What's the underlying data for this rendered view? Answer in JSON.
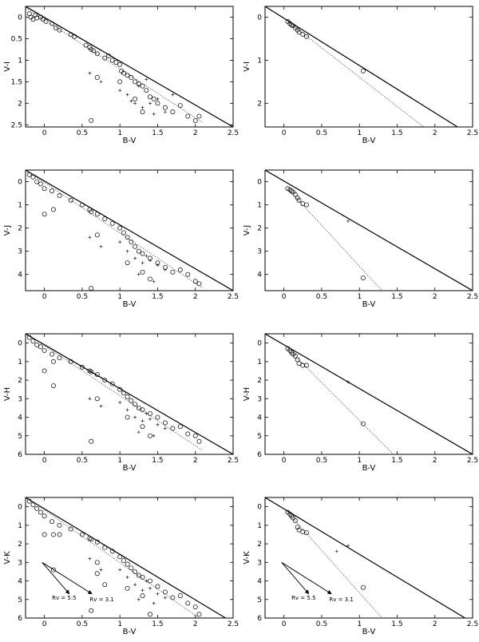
{
  "chart_data": [
    {
      "type": "scatter",
      "xlabel": "B-V",
      "ylabel": "V-I",
      "xlim": [
        -0.25,
        2.5
      ],
      "ylim": [
        2.55,
        -0.25
      ],
      "xticks": [
        0,
        0.5,
        1,
        1.5,
        2,
        2.5
      ],
      "yticks": [
        0,
        0.5,
        1,
        1.5,
        2,
        2.5
      ],
      "solid_line": [
        [
          -0.25,
          -0.25
        ],
        [
          2.5,
          2.55
        ]
      ],
      "dotted_line": [
        [
          -0.25,
          -0.22
        ],
        [
          2.1,
          2.45
        ]
      ],
      "circles": [
        [
          -0.2,
          -0.08
        ],
        [
          -0.18,
          0.0
        ],
        [
          -0.15,
          0.05
        ],
        [
          -0.12,
          -0.05
        ],
        [
          -0.1,
          0.02
        ],
        [
          -0.05,
          0.0
        ],
        [
          -0.02,
          0.05
        ],
        [
          0.02,
          0.1
        ],
        [
          0.1,
          0.15
        ],
        [
          0.15,
          0.25
        ],
        [
          0.2,
          0.3
        ],
        [
          0.35,
          0.4
        ],
        [
          0.4,
          0.45
        ],
        [
          0.55,
          0.65
        ],
        [
          0.6,
          0.7
        ],
        [
          0.62,
          0.75
        ],
        [
          0.65,
          0.78
        ],
        [
          0.7,
          0.85
        ],
        [
          0.8,
          0.95
        ],
        [
          0.85,
          0.9
        ],
        [
          0.9,
          1.0
        ],
        [
          0.95,
          1.05
        ],
        [
          1.0,
          1.1
        ],
        [
          1.02,
          1.25
        ],
        [
          1.05,
          1.3
        ],
        [
          1.1,
          1.35
        ],
        [
          1.15,
          1.4
        ],
        [
          1.2,
          1.5
        ],
        [
          1.25,
          1.55
        ],
        [
          1.3,
          1.6
        ],
        [
          1.35,
          1.7
        ],
        [
          1.4,
          1.85
        ],
        [
          1.45,
          1.9
        ],
        [
          1.5,
          2.0
        ],
        [
          1.6,
          2.1
        ],
        [
          1.7,
          2.2
        ],
        [
          1.8,
          2.05
        ],
        [
          1.9,
          2.3
        ],
        [
          2.0,
          2.4
        ],
        [
          2.05,
          2.3
        ],
        [
          0.62,
          2.4
        ],
        [
          0.7,
          1.4
        ],
        [
          1.0,
          1.5
        ],
        [
          1.2,
          1.9
        ],
        [
          1.3,
          2.2
        ]
      ],
      "pluses": [
        [
          0.6,
          1.3
        ],
        [
          0.75,
          1.5
        ],
        [
          1.0,
          1.7
        ],
        [
          1.1,
          1.8
        ],
        [
          1.2,
          2.0
        ],
        [
          1.3,
          2.1
        ],
        [
          1.4,
          2.0
        ],
        [
          1.5,
          1.9
        ],
        [
          1.6,
          2.2
        ],
        [
          1.7,
          1.8
        ],
        [
          1.25,
          1.6
        ],
        [
          1.35,
          1.45
        ],
        [
          1.45,
          2.25
        ],
        [
          1.15,
          1.95
        ]
      ]
    },
    {
      "type": "scatter",
      "xlabel": "B-V",
      "ylabel": "V-I",
      "xlim": [
        -0.25,
        2.5
      ],
      "ylim": [
        2.55,
        -0.25
      ],
      "xticks": [
        0,
        0.5,
        1,
        1.5,
        2,
        2.5
      ],
      "yticks": [
        0,
        1,
        2
      ],
      "solid_line": [
        [
          -0.25,
          -0.25
        ],
        [
          2.3,
          2.55
        ]
      ],
      "dotted_line": [
        [
          0.05,
          0.1
        ],
        [
          1.85,
          2.55
        ]
      ],
      "circles": [
        [
          0.05,
          0.1
        ],
        [
          0.08,
          0.15
        ],
        [
          0.1,
          0.18
        ],
        [
          0.12,
          0.2
        ],
        [
          0.15,
          0.25
        ],
        [
          0.18,
          0.3
        ],
        [
          0.2,
          0.35
        ],
        [
          0.25,
          0.4
        ],
        [
          0.3,
          0.45
        ],
        [
          1.05,
          1.25
        ]
      ],
      "pluses": []
    },
    {
      "type": "scatter",
      "xlabel": "B-V",
      "ylabel": "V-J",
      "xlim": [
        -0.25,
        2.5
      ],
      "ylim": [
        4.7,
        -0.5
      ],
      "xticks": [
        0,
        0.5,
        1,
        1.5,
        2,
        2.5
      ],
      "yticks": [
        0,
        1,
        2,
        3,
        4
      ],
      "solid_line": [
        [
          -0.25,
          -0.5
        ],
        [
          2.5,
          4.7
        ]
      ],
      "dotted_line": [
        [
          -0.2,
          -0.4
        ],
        [
          2.1,
          4.6
        ]
      ],
      "circles": [
        [
          -0.2,
          -0.3
        ],
        [
          -0.15,
          -0.2
        ],
        [
          -0.1,
          0.0
        ],
        [
          -0.05,
          0.1
        ],
        [
          0.0,
          0.3
        ],
        [
          0.1,
          0.4
        ],
        [
          0.2,
          0.6
        ],
        [
          0.35,
          0.8
        ],
        [
          0.5,
          1.0
        ],
        [
          0.6,
          1.2
        ],
        [
          0.62,
          1.3
        ],
        [
          0.7,
          1.4
        ],
        [
          0.8,
          1.6
        ],
        [
          0.9,
          1.8
        ],
        [
          1.0,
          2.0
        ],
        [
          1.05,
          2.2
        ],
        [
          1.1,
          2.4
        ],
        [
          1.15,
          2.6
        ],
        [
          1.2,
          2.8
        ],
        [
          1.25,
          3.0
        ],
        [
          1.3,
          3.1
        ],
        [
          1.4,
          3.3
        ],
        [
          1.5,
          3.5
        ],
        [
          1.6,
          3.7
        ],
        [
          1.7,
          3.9
        ],
        [
          1.8,
          3.8
        ],
        [
          1.9,
          4.0
        ],
        [
          2.0,
          4.3
        ],
        [
          2.05,
          4.4
        ],
        [
          0.0,
          1.4
        ],
        [
          0.12,
          1.2
        ],
        [
          0.7,
          2.3
        ],
        [
          0.62,
          4.6
        ],
        [
          1.1,
          3.5
        ],
        [
          1.3,
          3.9
        ],
        [
          1.4,
          4.2
        ]
      ],
      "pluses": [
        [
          0.6,
          2.4
        ],
        [
          0.75,
          2.8
        ],
        [
          1.0,
          2.6
        ],
        [
          1.1,
          3.0
        ],
        [
          1.2,
          3.3
        ],
        [
          1.3,
          3.5
        ],
        [
          1.4,
          3.4
        ],
        [
          1.5,
          3.6
        ],
        [
          1.6,
          3.8
        ],
        [
          1.25,
          4.0
        ],
        [
          1.35,
          3.2
        ],
        [
          1.45,
          4.3
        ]
      ]
    },
    {
      "type": "scatter",
      "xlabel": "B-V",
      "ylabel": "V-J",
      "xlim": [
        -0.25,
        2.5
      ],
      "ylim": [
        4.7,
        -0.5
      ],
      "xticks": [
        0,
        0.5,
        1,
        1.5,
        2,
        2.5
      ],
      "yticks": [
        0,
        1,
        2,
        3,
        4
      ],
      "solid_line": [
        [
          -0.25,
          -0.5
        ],
        [
          2.5,
          4.7
        ]
      ],
      "dotted_line": [
        [
          0.05,
          0.3
        ],
        [
          1.3,
          4.7
        ]
      ],
      "circles": [
        [
          0.05,
          0.3
        ],
        [
          0.08,
          0.35
        ],
        [
          0.1,
          0.4
        ],
        [
          0.12,
          0.45
        ],
        [
          0.15,
          0.55
        ],
        [
          0.18,
          0.7
        ],
        [
          0.2,
          0.8
        ],
        [
          0.25,
          0.95
        ],
        [
          0.3,
          1.0
        ],
        [
          1.05,
          4.15
        ]
      ],
      "pluses": [
        [
          0.85,
          1.7
        ]
      ]
    },
    {
      "type": "scatter",
      "xlabel": "B-V",
      "ylabel": "V-H",
      "xlim": [
        -0.25,
        2.5
      ],
      "ylim": [
        6.0,
        -0.5
      ],
      "xticks": [
        0,
        0.5,
        1,
        1.5,
        2,
        2.5
      ],
      "yticks": [
        0,
        1,
        2,
        3,
        4,
        5,
        6
      ],
      "solid_line": [
        [
          -0.25,
          -0.5
        ],
        [
          2.5,
          6.0
        ]
      ],
      "dotted_line": [
        [
          -0.2,
          -0.4
        ],
        [
          2.1,
          5.8
        ]
      ],
      "circles": [
        [
          -0.2,
          -0.3
        ],
        [
          -0.15,
          -0.1
        ],
        [
          -0.1,
          0.1
        ],
        [
          -0.05,
          0.2
        ],
        [
          0.0,
          0.4
        ],
        [
          0.1,
          0.6
        ],
        [
          0.2,
          0.8
        ],
        [
          0.35,
          1.0
        ],
        [
          0.5,
          1.3
        ],
        [
          0.6,
          1.5
        ],
        [
          0.62,
          1.55
        ],
        [
          0.7,
          1.7
        ],
        [
          0.8,
          2.0
        ],
        [
          0.9,
          2.2
        ],
        [
          1.0,
          2.5
        ],
        [
          1.05,
          2.7
        ],
        [
          1.1,
          2.9
        ],
        [
          1.15,
          3.1
        ],
        [
          1.2,
          3.3
        ],
        [
          1.25,
          3.5
        ],
        [
          1.3,
          3.6
        ],
        [
          1.4,
          3.8
        ],
        [
          1.5,
          4.0
        ],
        [
          1.6,
          4.3
        ],
        [
          1.7,
          4.6
        ],
        [
          1.8,
          4.5
        ],
        [
          1.9,
          4.9
        ],
        [
          2.0,
          5.0
        ],
        [
          2.05,
          5.3
        ],
        [
          0.0,
          1.5
        ],
        [
          0.12,
          1.0
        ],
        [
          0.12,
          2.3
        ],
        [
          0.7,
          3.0
        ],
        [
          0.62,
          5.3
        ],
        [
          1.1,
          4.0
        ],
        [
          1.3,
          4.5
        ],
        [
          1.4,
          5.0
        ]
      ],
      "pluses": [
        [
          0.6,
          3.0
        ],
        [
          0.75,
          3.4
        ],
        [
          1.0,
          3.2
        ],
        [
          1.1,
          3.6
        ],
        [
          1.2,
          4.0
        ],
        [
          1.3,
          4.2
        ],
        [
          1.4,
          4.1
        ],
        [
          1.5,
          4.4
        ],
        [
          1.6,
          4.6
        ],
        [
          1.25,
          4.8
        ],
        [
          1.35,
          3.8
        ],
        [
          1.45,
          5.0
        ]
      ]
    },
    {
      "type": "scatter",
      "xlabel": "B-V",
      "ylabel": "V-H",
      "xlim": [
        -0.25,
        2.5
      ],
      "ylim": [
        6.0,
        -0.5
      ],
      "xticks": [
        0,
        0.5,
        1,
        1.5,
        2,
        2.5
      ],
      "yticks": [
        0,
        1,
        2,
        3,
        4,
        5,
        6
      ],
      "solid_line": [
        [
          -0.25,
          -0.5
        ],
        [
          2.5,
          6.0
        ]
      ],
      "dotted_line": [
        [
          0.05,
          0.3
        ],
        [
          1.45,
          6.0
        ]
      ],
      "circles": [
        [
          0.05,
          0.3
        ],
        [
          0.08,
          0.4
        ],
        [
          0.1,
          0.5
        ],
        [
          0.12,
          0.6
        ],
        [
          0.15,
          0.7
        ],
        [
          0.18,
          0.9
        ],
        [
          0.2,
          1.1
        ],
        [
          0.25,
          1.2
        ],
        [
          0.3,
          1.2
        ],
        [
          1.05,
          4.35
        ]
      ],
      "pluses": [
        [
          0.85,
          2.1
        ]
      ]
    },
    {
      "type": "scatter",
      "xlabel": "B-V",
      "ylabel": "V-K",
      "xlim": [
        -0.25,
        2.5
      ],
      "ylim": [
        6.0,
        -0.5
      ],
      "xticks": [
        0,
        0.5,
        1,
        1.5,
        2,
        2.5
      ],
      "yticks": [
        0,
        1,
        2,
        3,
        4,
        5,
        6
      ],
      "solid_line": [
        [
          -0.25,
          -0.5
        ],
        [
          2.4,
          6.0
        ]
      ],
      "dotted_line": [
        [
          -0.2,
          -0.4
        ],
        [
          2.05,
          6.0
        ]
      ],
      "circles": [
        [
          -0.2,
          -0.3
        ],
        [
          -0.15,
          -0.1
        ],
        [
          -0.1,
          0.1
        ],
        [
          -0.05,
          0.3
        ],
        [
          0.0,
          0.5
        ],
        [
          0.1,
          0.8
        ],
        [
          0.2,
          1.0
        ],
        [
          0.35,
          1.2
        ],
        [
          0.5,
          1.5
        ],
        [
          0.6,
          1.7
        ],
        [
          0.62,
          1.75
        ],
        [
          0.7,
          1.9
        ],
        [
          0.8,
          2.2
        ],
        [
          0.9,
          2.4
        ],
        [
          1.0,
          2.7
        ],
        [
          1.05,
          2.9
        ],
        [
          1.1,
          3.1
        ],
        [
          1.15,
          3.3
        ],
        [
          1.2,
          3.5
        ],
        [
          1.25,
          3.7
        ],
        [
          1.3,
          3.8
        ],
        [
          1.4,
          4.0
        ],
        [
          1.5,
          4.3
        ],
        [
          1.6,
          4.6
        ],
        [
          1.7,
          4.9
        ],
        [
          1.8,
          4.8
        ],
        [
          1.9,
          5.2
        ],
        [
          2.0,
          5.4
        ],
        [
          2.05,
          5.8
        ],
        [
          0.0,
          1.5
        ],
        [
          0.12,
          1.5
        ],
        [
          0.2,
          1.5
        ],
        [
          0.7,
          3.0
        ],
        [
          0.62,
          5.6
        ],
        [
          1.1,
          4.4
        ],
        [
          1.3,
          4.8
        ],
        [
          1.4,
          5.8
        ],
        [
          0.12,
          3.4
        ],
        [
          0.7,
          3.6
        ],
        [
          0.8,
          4.2
        ]
      ],
      "pluses": [
        [
          0.6,
          2.8
        ],
        [
          0.75,
          3.4
        ],
        [
          1.0,
          3.4
        ],
        [
          1.1,
          3.8
        ],
        [
          1.2,
          4.2
        ],
        [
          1.3,
          4.5
        ],
        [
          1.4,
          4.4
        ],
        [
          1.5,
          4.7
        ],
        [
          1.6,
          4.9
        ],
        [
          1.25,
          5.0
        ],
        [
          1.35,
          4.0
        ],
        [
          1.45,
          5.2
        ]
      ],
      "arrows": [
        [
          [
            -0.03,
            3.0
          ],
          [
            0.33,
            4.7
          ]
        ],
        [
          [
            -0.03,
            3.0
          ],
          [
            0.63,
            4.7
          ]
        ]
      ],
      "arrow_labels": [
        {
          "text": "Rv = 5.5",
          "x": 0.1,
          "y": 5.0
        },
        {
          "text": "Rv = 3.1",
          "x": 0.6,
          "y": 5.1
        }
      ]
    },
    {
      "type": "scatter",
      "xlabel": "B-V",
      "ylabel": "V-K",
      "xlim": [
        -0.25,
        2.5
      ],
      "ylim": [
        6.0,
        -0.5
      ],
      "xticks": [
        0,
        0.5,
        1,
        1.5,
        2,
        2.5
      ],
      "yticks": [
        0,
        1,
        2,
        3,
        4,
        5,
        6
      ],
      "solid_line": [
        [
          -0.25,
          -0.5
        ],
        [
          2.4,
          6.0
        ]
      ],
      "dotted_line": [
        [
          0.05,
          0.3
        ],
        [
          1.3,
          6.0
        ]
      ],
      "circles": [
        [
          0.05,
          0.3
        ],
        [
          0.08,
          0.4
        ],
        [
          0.1,
          0.5
        ],
        [
          0.12,
          0.6
        ],
        [
          0.15,
          0.75
        ],
        [
          0.18,
          1.1
        ],
        [
          0.2,
          1.25
        ],
        [
          0.25,
          1.35
        ],
        [
          0.3,
          1.4
        ],
        [
          1.05,
          4.35
        ]
      ],
      "pluses": [
        [
          0.85,
          2.1
        ],
        [
          0.7,
          2.4
        ]
      ],
      "arrows": [
        [
          [
            -0.03,
            3.0
          ],
          [
            0.33,
            4.7
          ]
        ],
        [
          [
            -0.03,
            3.0
          ],
          [
            0.63,
            4.7
          ]
        ]
      ],
      "arrow_labels": [
        {
          "text": "Rv = 5.5",
          "x": 0.1,
          "y": 5.0
        },
        {
          "text": "Rv = 3.1",
          "x": 0.6,
          "y": 5.1
        }
      ]
    }
  ]
}
